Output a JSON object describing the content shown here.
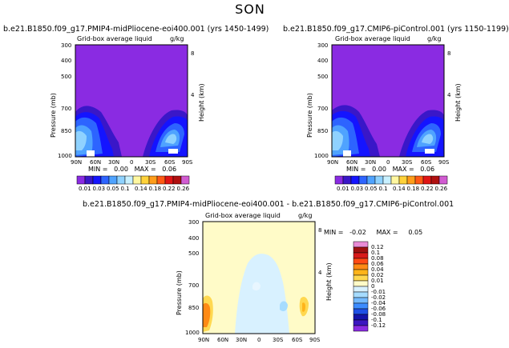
{
  "title": "SON",
  "panels": [
    {
      "id": "left",
      "case_title": "b.e21.B1850.f09_g17.PMIP4-midPliocene-eoi400.001 (yrs 1450-1499)",
      "field": "Grid-box average liquid",
      "units": "g/kg",
      "stats": "MIN =   0.00   MAX =   0.06"
    },
    {
      "id": "right",
      "case_title": "b.e21.B1850.f09_g17.CMIP6-piControl.001 (yrs 1150-1199)",
      "field": "Grid-box average liquid",
      "units": "g/kg",
      "stats": "MIN =   0.00   MAX =   0.06"
    },
    {
      "id": "diff",
      "case_title": "b.e21.B1850.f09_g17.PMIP4-midPliocene-eoi400.001  -  b.e21.B1850.f09_g17.CMIP6-piControl.001",
      "field": "Grid-box average liquid",
      "units": "g/kg",
      "stats": "MIN =   -0.02     MAX =     0.05"
    }
  ],
  "axes": {
    "ylabel": "Pressure (mb)",
    "ylabel_right": "Height (km)",
    "pressure_ticks": [
      "300",
      "400",
      "500",
      "700",
      "850",
      "1000"
    ],
    "height_ticks": [
      "8",
      "4"
    ],
    "lat_ticks": [
      "90N",
      "60N",
      "30N",
      "0",
      "30S",
      "60S",
      "90S"
    ]
  },
  "colorbar_abs": {
    "labels": [
      "0.01",
      "0.03",
      "0.05",
      "0.1",
      "0.14",
      "0.18",
      "0.22",
      "0.26"
    ],
    "colors": [
      "#8a2be2",
      "#3a17c8",
      "#1414ff",
      "#2d64ff",
      "#4fa3ff",
      "#8fd2ff",
      "#c8f0ff",
      "#fff7a0",
      "#ffd23a",
      "#ff9d1a",
      "#ff5a14",
      "#e01414",
      "#b01010",
      "#d15bd1"
    ]
  },
  "colorbar_diff": {
    "labels": [
      "0.12",
      "0.1",
      "0.08",
      "0.06",
      "0.04",
      "0.02",
      "0.01",
      "0",
      "-0.01",
      "-0.02",
      "-0.04",
      "-0.06",
      "-0.08",
      "-0.1",
      "-0.12"
    ],
    "colors": [
      "#e98bd6",
      "#a01010",
      "#d81a1a",
      "#ff4a14",
      "#ff8a14",
      "#ffb41a",
      "#ffd850",
      "#fffbc8",
      "#d8f1ff",
      "#a6dcff",
      "#74baff",
      "#3c8cff",
      "#1e50e6",
      "#1414aa",
      "#3b16c0",
      "#8a2be2"
    ]
  },
  "chart_data": [
    {
      "type": "heatmap",
      "panel": "left",
      "title": "b.e21.B1850.f09_g17.PMIP4-midPliocene-eoi400.001 (yrs 1450-1499)",
      "xlabel": "",
      "ylabel": "Pressure (mb)",
      "x_ticks": [
        "90N",
        "60N",
        "30N",
        "0",
        "30S",
        "60S",
        "90S"
      ],
      "y_ticks": [
        300,
        400,
        500,
        700,
        850,
        1000
      ],
      "min": 0.0,
      "max": 0.06
    },
    {
      "type": "heatmap",
      "panel": "right",
      "title": "b.e21.B1850.f09_g17.CMIP6-piControl.001 (yrs 1150-1199)",
      "xlabel": "",
      "ylabel": "Pressure (mb)",
      "x_ticks": [
        "90N",
        "60N",
        "30N",
        "0",
        "30S",
        "60S",
        "90S"
      ],
      "y_ticks": [
        300,
        400,
        500,
        700,
        850,
        1000
      ],
      "min": 0.0,
      "max": 0.06
    },
    {
      "type": "heatmap",
      "panel": "diff",
      "title": "b.e21.B1850.f09_g17.PMIP4-midPliocene-eoi400.001  -  b.e21.B1850.f09_g17.CMIP6-piControl.001",
      "xlabel": "",
      "ylabel": "Pressure (mb)",
      "x_ticks": [
        "90N",
        "60N",
        "30N",
        "0",
        "30S",
        "60S",
        "90S"
      ],
      "y_ticks": [
        300,
        400,
        500,
        700,
        850,
        1000
      ],
      "min": -0.02,
      "max": 0.05
    }
  ]
}
